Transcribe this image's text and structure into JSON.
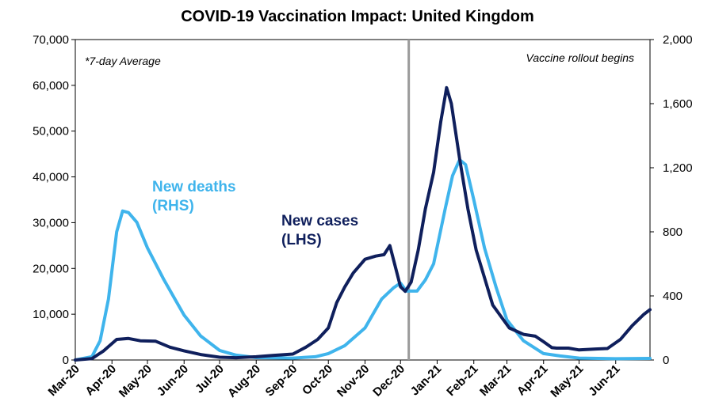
{
  "chart_data": {
    "type": "line",
    "title": "COVID-19 Vaccination Impact: United Kingdom",
    "annotations": {
      "average_note": "*7-day Average",
      "vaccine_note": "Vaccine rollout begins",
      "vaccine_date": "2020-12-08"
    },
    "x_ticks": [
      "Mar-20",
      "Apr-20",
      "May-20",
      "Jun-20",
      "Jul-20",
      "Aug-20",
      "Sep-20",
      "Oct-20",
      "Nov-20",
      "Dec-20",
      "Jan-21",
      "Feb-21",
      "Mar-21",
      "Apr-21",
      "May-21",
      "Jun-21"
    ],
    "x_range": [
      "2020-03-01",
      "2021-06-30"
    ],
    "y_left": {
      "ticks": [
        "0",
        "10,000",
        "20,000",
        "30,000",
        "40,000",
        "50,000",
        "60,000",
        "70,000"
      ],
      "range": [
        0,
        70000
      ]
    },
    "y_right": {
      "ticks": [
        "0",
        "400",
        "800",
        "1,200",
        "1,600",
        "2,000"
      ],
      "range": [
        0,
        2000
      ]
    },
    "series": [
      {
        "name": "New cases (LHS)",
        "label_lines": [
          "New cases",
          "(LHS)"
        ],
        "axis": "left",
        "color": "#0f1f5c",
        "points": [
          [
            "2020-03-01",
            0
          ],
          [
            "2020-03-15",
            300
          ],
          [
            "2020-03-25",
            2000
          ],
          [
            "2020-04-05",
            4500
          ],
          [
            "2020-04-15",
            4700
          ],
          [
            "2020-04-25",
            4200
          ],
          [
            "2020-05-08",
            4100
          ],
          [
            "2020-05-20",
            2800
          ],
          [
            "2020-06-01",
            2000
          ],
          [
            "2020-06-15",
            1200
          ],
          [
            "2020-07-01",
            600
          ],
          [
            "2020-07-15",
            500
          ],
          [
            "2020-08-01",
            700
          ],
          [
            "2020-08-15",
            1000
          ],
          [
            "2020-09-01",
            1300
          ],
          [
            "2020-09-12",
            2800
          ],
          [
            "2020-09-22",
            4500
          ],
          [
            "2020-10-01",
            7000
          ],
          [
            "2020-10-08",
            12500
          ],
          [
            "2020-10-15",
            16000
          ],
          [
            "2020-10-22",
            19000
          ],
          [
            "2020-11-01",
            22000
          ],
          [
            "2020-11-10",
            22700
          ],
          [
            "2020-11-17",
            23000
          ],
          [
            "2020-11-22",
            25000
          ],
          [
            "2020-11-26",
            21000
          ],
          [
            "2020-12-01",
            16000
          ],
          [
            "2020-12-05",
            15000
          ],
          [
            "2020-12-10",
            17000
          ],
          [
            "2020-12-16",
            24000
          ],
          [
            "2020-12-22",
            33000
          ],
          [
            "2020-12-29",
            41000
          ],
          [
            "2021-01-04",
            52000
          ],
          [
            "2021-01-09",
            59500
          ],
          [
            "2021-01-13",
            56000
          ],
          [
            "2021-01-20",
            44000
          ],
          [
            "2021-01-27",
            33000
          ],
          [
            "2021-02-03",
            24000
          ],
          [
            "2021-02-10",
            18000
          ],
          [
            "2021-02-17",
            12000
          ],
          [
            "2021-02-24",
            9500
          ],
          [
            "2021-03-03",
            7000
          ],
          [
            "2021-03-15",
            5600
          ],
          [
            "2021-03-25",
            5200
          ],
          [
            "2021-04-01",
            4000
          ],
          [
            "2021-04-08",
            2700
          ],
          [
            "2021-04-12",
            2600
          ],
          [
            "2021-04-22",
            2600
          ],
          [
            "2021-05-01",
            2200
          ],
          [
            "2021-05-15",
            2400
          ],
          [
            "2021-05-25",
            2500
          ],
          [
            "2021-06-05",
            4500
          ],
          [
            "2021-06-15",
            7500
          ],
          [
            "2021-06-25",
            10000
          ],
          [
            "2021-06-30",
            11000
          ]
        ]
      },
      {
        "name": "New deaths (RHS)",
        "label_lines": [
          "New deaths",
          "(RHS)"
        ],
        "axis": "right",
        "color": "#3fb4ec",
        "points": [
          [
            "2020-03-01",
            0
          ],
          [
            "2020-03-15",
            20
          ],
          [
            "2020-03-22",
            120
          ],
          [
            "2020-03-29",
            380
          ],
          [
            "2020-04-05",
            800
          ],
          [
            "2020-04-10",
            930
          ],
          [
            "2020-04-15",
            920
          ],
          [
            "2020-04-22",
            860
          ],
          [
            "2020-05-01",
            700
          ],
          [
            "2020-05-15",
            500
          ],
          [
            "2020-06-01",
            280
          ],
          [
            "2020-06-15",
            150
          ],
          [
            "2020-07-01",
            60
          ],
          [
            "2020-07-15",
            30
          ],
          [
            "2020-08-01",
            15
          ],
          [
            "2020-09-01",
            12
          ],
          [
            "2020-09-20",
            20
          ],
          [
            "2020-10-01",
            40
          ],
          [
            "2020-10-15",
            90
          ],
          [
            "2020-11-01",
            200
          ],
          [
            "2020-11-15",
            380
          ],
          [
            "2020-11-25",
            450
          ],
          [
            "2020-12-01",
            480
          ],
          [
            "2020-12-06",
            430
          ],
          [
            "2020-12-15",
            430
          ],
          [
            "2020-12-22",
            500
          ],
          [
            "2020-12-29",
            600
          ],
          [
            "2021-01-08",
            950
          ],
          [
            "2021-01-14",
            1150
          ],
          [
            "2021-01-20",
            1250
          ],
          [
            "2021-01-25",
            1220
          ],
          [
            "2021-02-01",
            1000
          ],
          [
            "2021-02-10",
            700
          ],
          [
            "2021-02-20",
            450
          ],
          [
            "2021-03-01",
            250
          ],
          [
            "2021-03-15",
            120
          ],
          [
            "2021-04-01",
            40
          ],
          [
            "2021-04-15",
            25
          ],
          [
            "2021-05-01",
            12
          ],
          [
            "2021-06-01",
            8
          ],
          [
            "2021-06-30",
            10
          ]
        ]
      }
    ]
  }
}
